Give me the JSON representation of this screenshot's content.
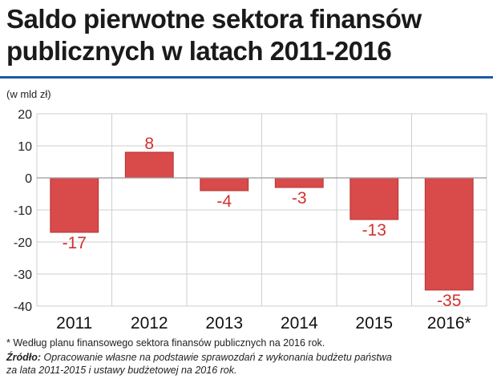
{
  "title_lines": [
    "Saldo pierwotne sektora finansów",
    "publicznych w latach 2011-2016"
  ],
  "unit_label": "(w mld zł)",
  "footnote": "* Według planu finansowego sektora finansów publicznych na 2016 rok.",
  "source": {
    "label": "Źródło:",
    "line1": "Opracowanie własne na podstawie sprawozdań z wykonania budżetu państwa",
    "line2": "za lata 2011-2015 i ustawy budżetowej na 2016 rok."
  },
  "colors": {
    "bar": "#d94a4a",
    "bar_edge": "#b53333",
    "label": "#d23030",
    "grid": "#cfcfcf",
    "accent": "#1e5aa8"
  },
  "chart_data": {
    "type": "bar",
    "title": "Saldo pierwotne sektora finansów publicznych w latach 2011-2016",
    "ylabel": "(w mld zł)",
    "categories": [
      "2011",
      "2012",
      "2013",
      "2014",
      "2015",
      "2016*"
    ],
    "values": [
      -17,
      8,
      -4,
      -3,
      -13,
      -35
    ],
    "value_labels": [
      "-17",
      "8",
      "-4",
      "-3",
      "-13",
      "-35"
    ],
    "ylim": [
      -40,
      20
    ],
    "yticks": [
      20,
      10,
      0,
      -10,
      -20,
      -30,
      -40
    ],
    "ytick_labels": [
      "20",
      "10",
      "0",
      "-10",
      "-20",
      "-30",
      "-40"
    ],
    "grid": true,
    "legend": "none"
  }
}
